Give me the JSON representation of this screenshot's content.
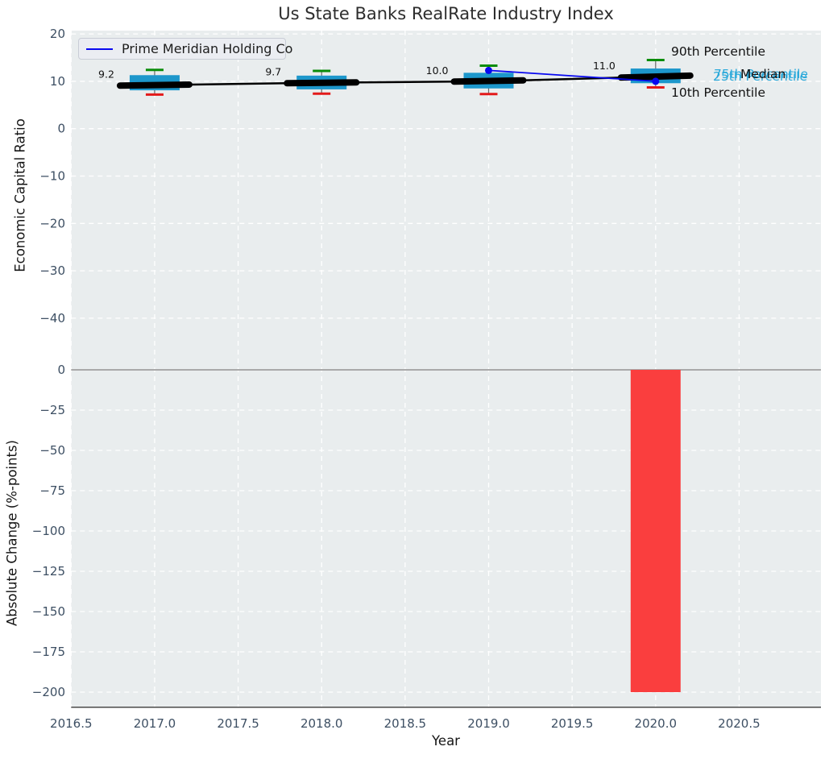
{
  "title": "Us State Banks RealRate Industry Index",
  "legend": {
    "label": "Prime Meridian Holding Co",
    "line_color": "#0808f0"
  },
  "annotations": {
    "p90": "90th Percentile",
    "p75": "75th Percentile",
    "median": "Median",
    "p25": "25th Percentile",
    "p10": "10th Percentile"
  },
  "colors": {
    "plot_background": "#e9edee",
    "gridline": "#ffffff",
    "tick_label": "#3d4f63",
    "box_fill": "#1d97cb",
    "cap_90th": "#0a8c0a",
    "cap_10th": "#e31a1a",
    "median_line": "#000000",
    "company_line": "#0808f0",
    "bar_fill": "#fa3e3e",
    "zero_line": "#a9a9a9",
    "cyan_annotation": "#2aa9da"
  },
  "chart_data": [
    {
      "type": "boxplot",
      "title": "Us State Banks RealRate Industry Index",
      "xlabel": "Year",
      "ylabel": "Economic Capital Ratio",
      "x": [
        2017,
        2018,
        2019,
        2020
      ],
      "series": [
        {
          "name": "90th Percentile",
          "values": [
            12.4,
            12.2,
            13.3,
            14.5
          ],
          "color": "#0a8c0a"
        },
        {
          "name": "75th Percentile",
          "values": [
            11.3,
            11.2,
            11.8,
            12.7
          ],
          "color": "#1d97cb"
        },
        {
          "name": "Median",
          "values": [
            9.2,
            9.7,
            10.0,
            11.0
          ],
          "color": "#000000"
        },
        {
          "name": "25th Percentile",
          "values": [
            8.1,
            8.3,
            8.5,
            9.6
          ],
          "color": "#1d97cb"
        },
        {
          "name": "10th Percentile",
          "values": [
            7.2,
            7.4,
            7.3,
            8.7
          ],
          "color": "#e31a1a"
        }
      ],
      "company_line": {
        "name": "Prime Meridian Holding Co",
        "x": [
          2019,
          2020
        ],
        "values": [
          12.3,
          10.0
        ],
        "color": "#0808f0"
      },
      "median_labels": [
        "9.2",
        "9.7",
        "10.0",
        "11.0"
      ],
      "yticks": [
        20,
        10,
        0,
        -10,
        -20,
        -30,
        -40
      ],
      "xticks": [
        2016.5,
        2017.0,
        2017.5,
        2018.0,
        2018.5,
        2019.0,
        2019.5,
        2020.0,
        2020.5
      ],
      "ylim": [
        -49.2,
        20.7
      ],
      "xlim": [
        2016.5,
        2020.99
      ],
      "grid": true,
      "legend_position": "upper left"
    },
    {
      "type": "bar",
      "xlabel": "Year",
      "ylabel": "Absolute Change (%-points)",
      "categories": [
        2020
      ],
      "values": [
        -200
      ],
      "bar_color": "#fa3e3e",
      "yticks": [
        0,
        -25,
        -50,
        -75,
        -100,
        -125,
        -150,
        -175,
        -200
      ],
      "ylim": [
        -209,
        5
      ],
      "grid": true
    }
  ]
}
